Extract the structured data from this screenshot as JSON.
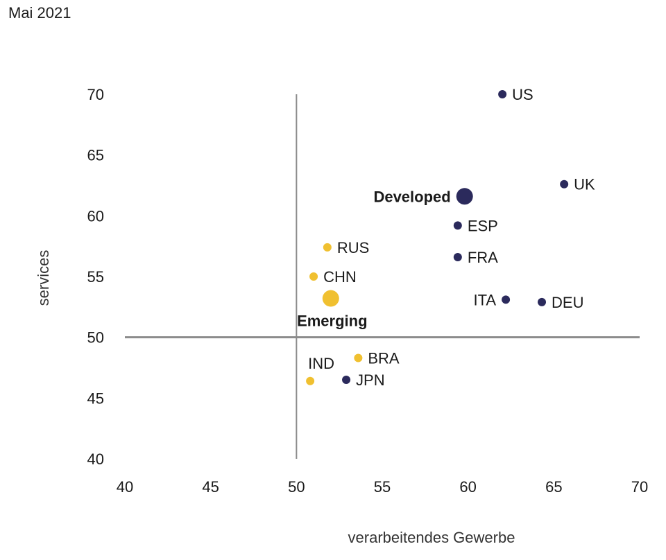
{
  "caption": "Mai 2021",
  "chart_data": {
    "type": "scatter",
    "title": "",
    "xlabel": "verarbeitendes Gewerbe",
    "ylabel": "services",
    "xlim": [
      40,
      70
    ],
    "ylim": [
      40,
      70
    ],
    "xticks": [
      40,
      45,
      50,
      55,
      60,
      65,
      70
    ],
    "yticks": [
      40,
      45,
      50,
      55,
      60,
      65,
      70
    ],
    "reference_lines": {
      "x": 50,
      "y": 50
    },
    "colors": {
      "developed": "#2b2a5c",
      "emerging": "#f0c030"
    },
    "points": [
      {
        "label": "US",
        "x": 62.0,
        "y": 70.0,
        "group": "developed",
        "aggregate": false,
        "label_side": "right"
      },
      {
        "label": "UK",
        "x": 65.6,
        "y": 62.6,
        "group": "developed",
        "aggregate": false,
        "label_side": "right"
      },
      {
        "label": "Developed",
        "x": 59.8,
        "y": 61.6,
        "group": "developed",
        "aggregate": true,
        "label_side": "left"
      },
      {
        "label": "ESP",
        "x": 59.4,
        "y": 59.2,
        "group": "developed",
        "aggregate": false,
        "label_side": "right"
      },
      {
        "label": "FRA",
        "x": 59.4,
        "y": 56.6,
        "group": "developed",
        "aggregate": false,
        "label_side": "right"
      },
      {
        "label": "ITA",
        "x": 62.2,
        "y": 53.1,
        "group": "developed",
        "aggregate": false,
        "label_side": "left"
      },
      {
        "label": "DEU",
        "x": 64.3,
        "y": 52.9,
        "group": "developed",
        "aggregate": false,
        "label_side": "right"
      },
      {
        "label": "JPN",
        "x": 52.9,
        "y": 46.5,
        "group": "developed",
        "aggregate": false,
        "label_side": "right"
      },
      {
        "label": "RUS",
        "x": 51.8,
        "y": 57.4,
        "group": "emerging",
        "aggregate": false,
        "label_side": "right"
      },
      {
        "label": "CHN",
        "x": 51.0,
        "y": 55.0,
        "group": "emerging",
        "aggregate": false,
        "label_side": "right"
      },
      {
        "label": "Emerging",
        "x": 52.0,
        "y": 53.2,
        "group": "emerging",
        "aggregate": true,
        "label_side": "below"
      },
      {
        "label": "BRA",
        "x": 53.6,
        "y": 48.3,
        "group": "emerging",
        "aggregate": false,
        "label_side": "right"
      },
      {
        "label": "IND",
        "x": 50.8,
        "y": 46.4,
        "group": "emerging",
        "aggregate": false,
        "label_side": "above"
      }
    ]
  }
}
